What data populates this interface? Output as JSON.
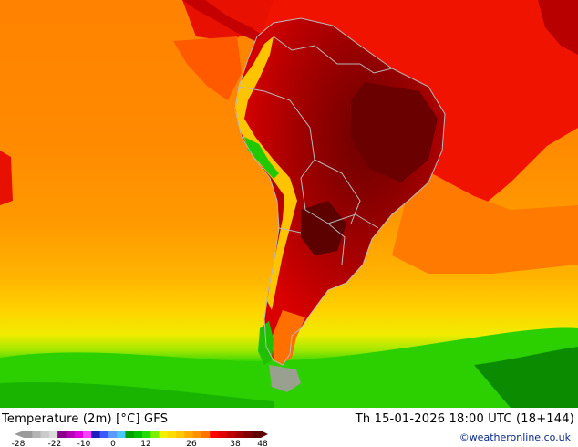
{
  "map": {
    "variable": "Temperature (2m) [°C]",
    "model": "GFS",
    "valid_time": "Th 15-01-2026 18:00 UTC (18+144)",
    "credit": "©weatheronline.co.uk",
    "region": "South America",
    "colors": {
      "ocean_warm": "#ff8c00",
      "ocean_mid": "#ffa500",
      "ocean_cool": "#ffcc00",
      "land_hot": "#c80000",
      "land_very_hot": "#7a0000",
      "tropical_sea": "#ff1a00",
      "southern_green": "#28d000",
      "southern_deep_green": "#0a7a00",
      "highlands": "#ffd800",
      "border_lines": "#b9b9b9"
    }
  },
  "legend": {
    "tick_labels": [
      "-28",
      "-22",
      "-10",
      "0",
      "12",
      "26",
      "38",
      "48"
    ],
    "colors": [
      "#9a9a9a",
      "#b4b4b4",
      "#cacaca",
      "#dcdcdc",
      "#8a008a",
      "#b400b4",
      "#e000e0",
      "#ff40ff",
      "#1e1ebe",
      "#3a5aff",
      "#5a9aff",
      "#4ac8ff",
      "#00a000",
      "#00c000",
      "#22dc00",
      "#7af000",
      "#f0f000",
      "#ffdc00",
      "#ffc800",
      "#ffaa00",
      "#ff9200",
      "#ff7400",
      "#ff0000",
      "#e00000",
      "#c00000",
      "#a00000",
      "#800000",
      "#600000"
    ]
  }
}
